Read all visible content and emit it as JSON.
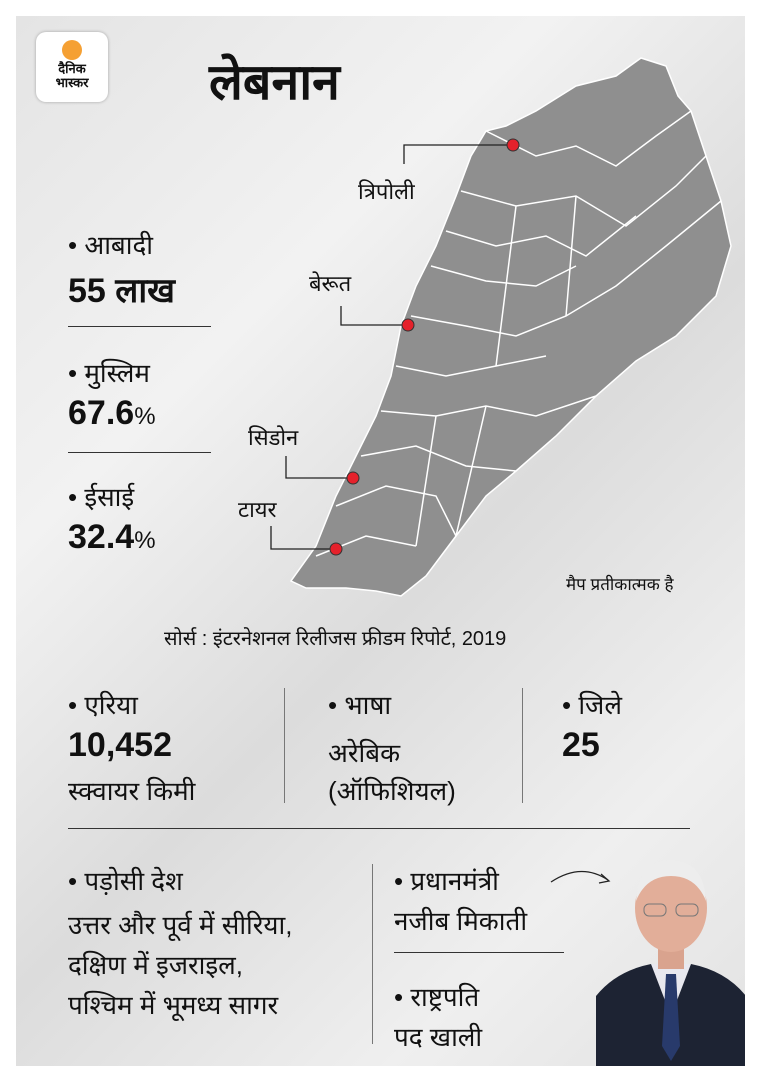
{
  "logo": {
    "line1": "दैनिक",
    "line2": "भास्कर",
    "accent": "#f5a033"
  },
  "title": "लेबनान",
  "stats": [
    {
      "label": "• आबादी",
      "value": "55 लाख"
    },
    {
      "label": "• मुस्लिम",
      "value": "67.6",
      "unit": "%"
    },
    {
      "label": "• ईसाई",
      "value": "32.4",
      "unit": "%"
    }
  ],
  "map": {
    "cities": [
      "त्रिपोली",
      "बेरूत",
      "सिडोन",
      "टायर"
    ],
    "note": "मैप प्रतीकात्मक है",
    "fill": "#8f8f8f",
    "dot": "#e5212b"
  },
  "source": "सोर्स : इंटरनेशनल रिलीजस फ्रीडम रिपोर्ट, 2019",
  "facts": {
    "area": {
      "label": "• एरिया",
      "value": "10,452",
      "unit": "स्क्वायर किमी"
    },
    "language": {
      "label": "• भाषा",
      "value": "अरेबिक",
      "note": "(ऑफिशियल)"
    },
    "districts": {
      "label": "• जिले",
      "value": "25"
    }
  },
  "neighbors": {
    "label": "• पड़ोसी देश",
    "lines": [
      "उत्तर और पूर्व में सीरिया,",
      "दक्षिण में इजराइल,",
      "पश्चिम में भूमध्य सागर"
    ]
  },
  "pm": {
    "label": "• प्रधानमंत्री",
    "name": "नजीब मिकाती"
  },
  "president": {
    "label": "• राष्ट्रपति",
    "status": "पद खाली"
  }
}
